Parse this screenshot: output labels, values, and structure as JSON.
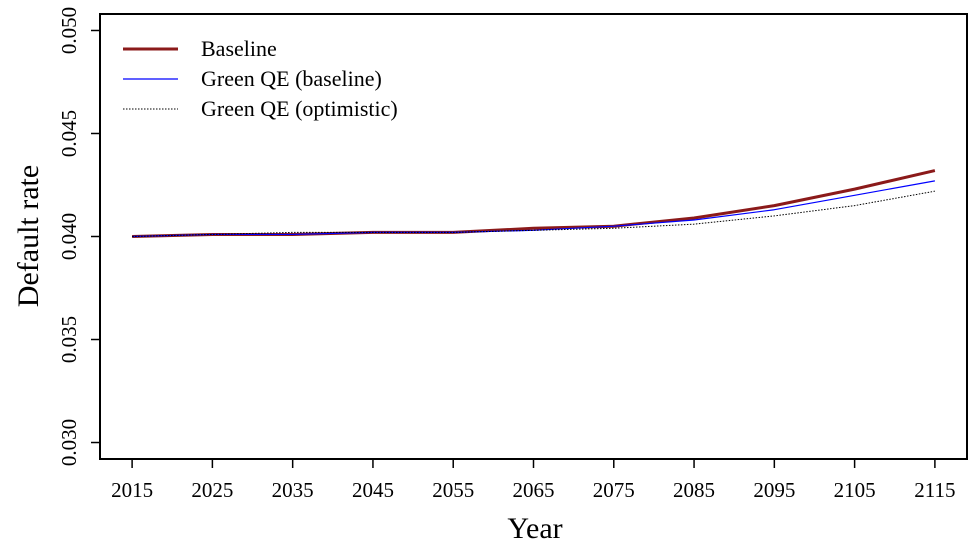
{
  "chart_data": {
    "type": "line",
    "x_label": "Year",
    "y_label": "Default rate",
    "x": [
      2015,
      2025,
      2035,
      2045,
      2055,
      2065,
      2075,
      2085,
      2095,
      2105,
      2115
    ],
    "series": [
      {
        "name": "Baseline",
        "color": "#8b1a1a",
        "style": "solid",
        "width": 3,
        "values": [
          0.04,
          0.0401,
          0.0401,
          0.0402,
          0.0402,
          0.0404,
          0.0405,
          0.0409,
          0.0415,
          0.0423,
          0.0432
        ]
      },
      {
        "name": "Green QE (baseline)",
        "color": "#0000ff",
        "style": "solid",
        "width": 1.2,
        "values": [
          0.04,
          0.0401,
          0.0401,
          0.0402,
          0.0402,
          0.0403,
          0.0405,
          0.0408,
          0.0413,
          0.042,
          0.0427
        ]
      },
      {
        "name": "Green QE (optimistic)",
        "color": "#000000",
        "style": "dotted",
        "width": 1,
        "values": [
          0.04,
          0.0401,
          0.0402,
          0.0402,
          0.0402,
          0.0403,
          0.0404,
          0.0406,
          0.041,
          0.0415,
          0.0422
        ]
      }
    ],
    "xlim": [
      2011,
      2119
    ],
    "xticks": [
      2015,
      2025,
      2035,
      2045,
      2055,
      2065,
      2075,
      2085,
      2095,
      2105,
      2115
    ],
    "ylim": [
      0.0292,
      0.0508
    ],
    "yticks": [
      {
        "value": 0.03,
        "label": "0.030"
      },
      0.035,
      {
        "value": 0.04,
        "label": "0.040"
      },
      0.045,
      {
        "value": 0.05,
        "label": "0.050"
      }
    ],
    "legend": "top-left",
    "grid": false
  }
}
